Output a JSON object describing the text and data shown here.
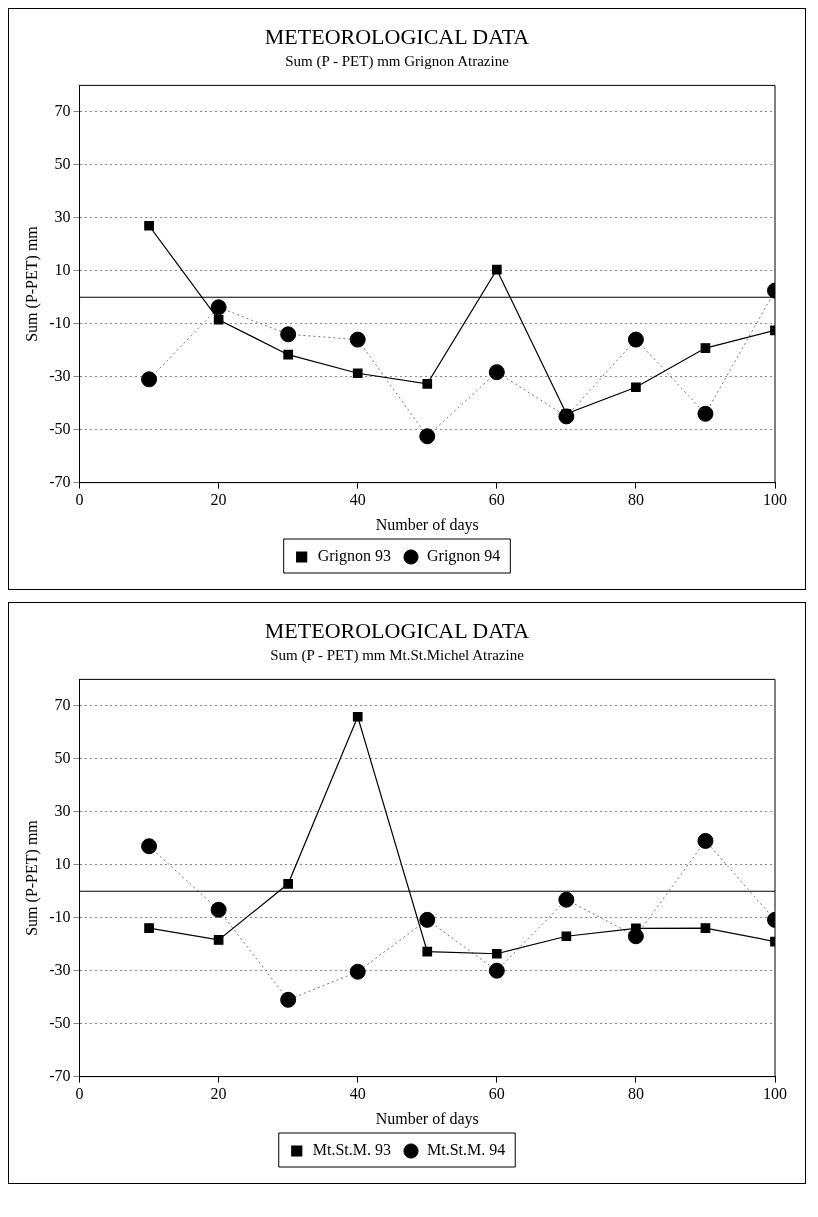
{
  "chart_data": [
    {
      "type": "line",
      "title": "METEOROLOGICAL DATA",
      "subtitle": "Sum (P - PET) mm Grignon Atrazine",
      "xlabel": "Number of days",
      "ylabel": "Sum (P-PET) mm",
      "x": [
        10,
        20,
        30,
        40,
        50,
        60,
        70,
        80,
        90,
        100
      ],
      "xlim": [
        0,
        100
      ],
      "xticks": [
        0,
        20,
        40,
        60,
        80,
        100
      ],
      "ylim": [
        -70,
        80
      ],
      "yticks": [
        -70,
        -50,
        -30,
        -10,
        10,
        30,
        50,
        70
      ],
      "grid": "y",
      "legend": "bottom",
      "ref_lines": [
        {
          "axis": "y",
          "value": 0,
          "color": "#000000"
        }
      ],
      "series": [
        {
          "name": "Grignon 93",
          "color": "#000000",
          "marker": "square",
          "line_style": "solid",
          "values": [
            27,
            -8.5,
            -21.7,
            -28.7,
            -32.7,
            10.4,
            -44,
            -34,
            -19.2,
            -12.5
          ]
        },
        {
          "name": "Grignon 94",
          "color": "#000000",
          "marker": "circle",
          "line_style": "dotted",
          "values": [
            -31,
            -3.8,
            -14,
            -16,
            -52.5,
            -28.3,
            -45,
            -16,
            -44,
            2.5
          ]
        }
      ]
    },
    {
      "type": "line",
      "title": "METEOROLOGICAL DATA",
      "subtitle": "Sum (P - PET) mm Mt.St.Michel Atrazine",
      "xlabel": "Number of days",
      "ylabel": "Sum (P-PET) mm",
      "x": [
        10,
        20,
        30,
        40,
        50,
        60,
        70,
        80,
        90,
        100
      ],
      "xlim": [
        0,
        100
      ],
      "xticks": [
        0,
        20,
        40,
        60,
        80,
        100
      ],
      "ylim": [
        -70,
        80
      ],
      "yticks": [
        -70,
        -50,
        -30,
        -10,
        10,
        30,
        50,
        70
      ],
      "grid": "y",
      "legend": "bottom",
      "ref_lines": [
        {
          "axis": "y",
          "value": 0,
          "color": "#000000"
        }
      ],
      "series": [
        {
          "name": "Mt.St.M. 93",
          "color": "#000000",
          "marker": "square",
          "line_style": "solid",
          "values": [
            -13.9,
            -18.4,
            2.8,
            65.9,
            -22.8,
            -23.6,
            -17,
            -14,
            -13.9,
            -19
          ]
        },
        {
          "name": "Mt.St.M. 94",
          "color": "#000000",
          "marker": "circle",
          "line_style": "dotted",
          "values": [
            17,
            -7,
            -41,
            -30.4,
            -10.8,
            -30,
            -3.2,
            -17,
            19,
            -10.8
          ]
        }
      ]
    }
  ]
}
